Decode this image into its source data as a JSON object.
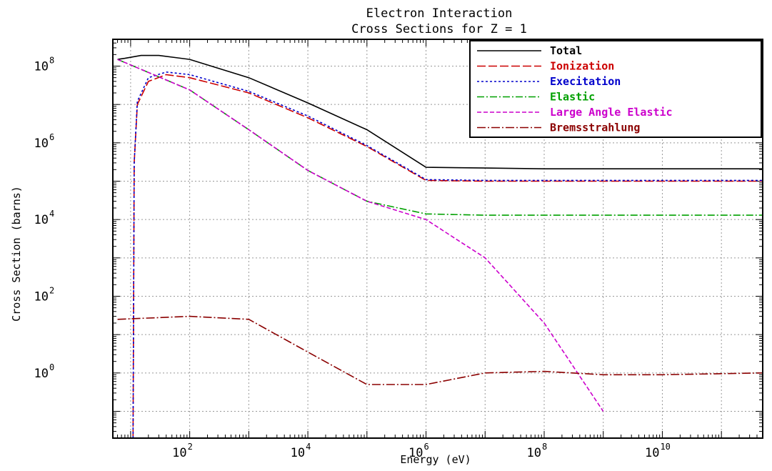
{
  "chart_data": {
    "type": "line",
    "title": "Electron Interaction",
    "subtitle": "Cross Sections for Z = 1",
    "xlabel": "Energy (eV)",
    "ylabel": "Cross Section (barns)",
    "x_scale": "log",
    "y_scale": "log",
    "xlim": [
      5,
      500000000000.0
    ],
    "ylim": [
      0.02,
      500000000.0
    ],
    "grid": true,
    "legend_position": "top-right",
    "x_ticks": [
      {
        "base": "10",
        "exp": "2",
        "value": 100
      },
      {
        "base": "10",
        "exp": "4",
        "value": 10000
      },
      {
        "base": "10",
        "exp": "6",
        "value": 1000000
      },
      {
        "base": "10",
        "exp": "8",
        "value": 100000000
      },
      {
        "base": "10",
        "exp": "10",
        "value": 10000000000
      }
    ],
    "y_ticks": [
      {
        "base": "10",
        "exp": "0",
        "value": 1
      },
      {
        "base": "10",
        "exp": "2",
        "value": 100
      },
      {
        "base": "10",
        "exp": "4",
        "value": 10000
      },
      {
        "base": "10",
        "exp": "6",
        "value": 1000000
      },
      {
        "base": "10",
        "exp": "8",
        "value": 100000000
      }
    ],
    "series": [
      {
        "name": "Total",
        "color": "#000000",
        "dash": "",
        "points": [
          [
            6,
            150000000.0
          ],
          [
            8,
            160000000.0
          ],
          [
            15,
            190000000.0
          ],
          [
            30,
            190000000.0
          ],
          [
            100,
            150000000.0
          ],
          [
            1000,
            50000000.0
          ],
          [
            10000,
            11000000.0
          ],
          [
            100000,
            2200000.0
          ],
          [
            1000000,
            230000.0
          ],
          [
            10000000,
            220000.0
          ],
          [
            100000000,
            210000.0
          ],
          [
            10000000000.0,
            210000.0
          ],
          [
            500000000000.0,
            210000.0
          ]
        ]
      },
      {
        "name": "Ionization",
        "color": "#cc0000",
        "dash": "12,4",
        "points": [
          [
            11,
            0.02
          ],
          [
            11.5,
            300000.0
          ],
          [
            13,
            10000000.0
          ],
          [
            20,
            40000000.0
          ],
          [
            40,
            60000000.0
          ],
          [
            100,
            50000000.0
          ],
          [
            1000,
            20000000.0
          ],
          [
            10000,
            4500000.0
          ],
          [
            100000,
            800000.0
          ],
          [
            1000000,
            105000.0
          ],
          [
            10000000,
            100000.0
          ],
          [
            100000000,
            100000.0
          ],
          [
            10000000000.0,
            100000.0
          ],
          [
            500000000000.0,
            100000.0
          ]
        ]
      },
      {
        "name": "Execitation",
        "color": "#0000cc",
        "dash": "3,3",
        "points": [
          [
            11,
            0.02
          ],
          [
            11.5,
            300000.0
          ],
          [
            13,
            12000000.0
          ],
          [
            20,
            50000000.0
          ],
          [
            40,
            70000000.0
          ],
          [
            100,
            60000000.0
          ],
          [
            1000,
            22000000.0
          ],
          [
            10000,
            5000000.0
          ],
          [
            100000,
            850000.0
          ],
          [
            1000000,
            110000.0
          ],
          [
            10000000,
            105000.0
          ],
          [
            10000000000.0,
            105000.0
          ],
          [
            500000000000.0,
            105000.0
          ]
        ]
      },
      {
        "name": "Elastic",
        "color": "#00a000",
        "dash": "10,3,2,3",
        "points": [
          [
            6,
            150000000.0
          ],
          [
            100,
            24000000.0
          ],
          [
            1000,
            2200000.0
          ],
          [
            10000,
            190000.0
          ],
          [
            100000,
            30000.0
          ],
          [
            1000000,
            14000.0
          ],
          [
            10000000,
            13000.0
          ],
          [
            10000000000.0,
            13000.0
          ],
          [
            500000000000.0,
            13000.0
          ]
        ]
      },
      {
        "name": "Large Angle Elastic",
        "color": "#cc00cc",
        "dash": "6,3",
        "points": [
          [
            6,
            150000000.0
          ],
          [
            100,
            24000000.0
          ],
          [
            1000,
            2200000.0
          ],
          [
            10000,
            190000.0
          ],
          [
            100000,
            30000.0
          ],
          [
            1000000,
            10000.0
          ],
          [
            10000000,
            1000.0
          ],
          [
            100000000,
            20
          ],
          [
            1000000000,
            0.1
          ]
        ]
      },
      {
        "name": "Bremsstrahlung",
        "color": "#8b0000",
        "dash": "12,3,2,3",
        "points": [
          [
            6,
            25
          ],
          [
            100,
            30
          ],
          [
            1000,
            25
          ],
          [
            10000,
            3.5
          ],
          [
            100000,
            0.5
          ],
          [
            1000000,
            0.5
          ],
          [
            10000000,
            1
          ],
          [
            100000000,
            1.1
          ],
          [
            1000000000,
            0.9
          ],
          [
            10000000000.0,
            0.9
          ],
          [
            500000000000.0,
            1
          ]
        ]
      }
    ]
  }
}
